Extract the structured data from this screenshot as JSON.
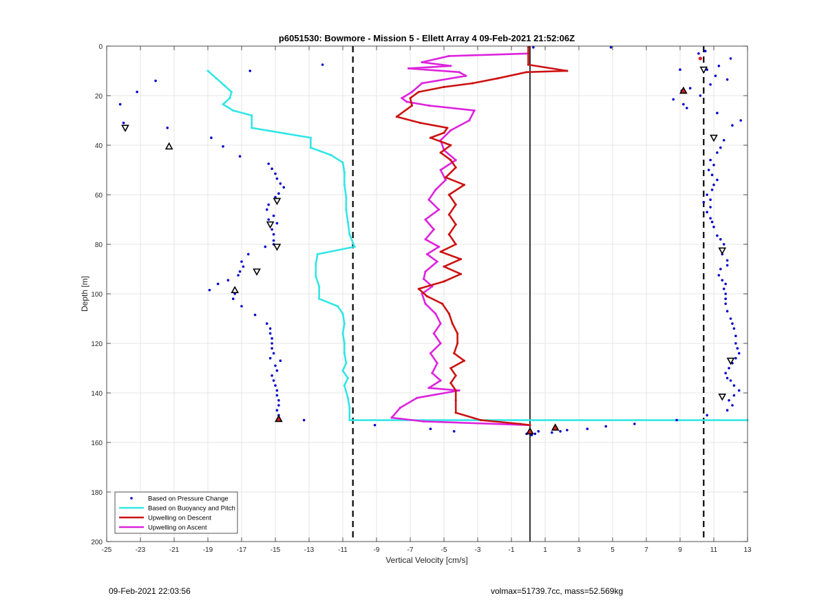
{
  "footer": {
    "timestamp": "09-Feb-2021 22:03:56",
    "volmax_mass": "volmax=51739.7cc, mass=52.569kg"
  },
  "chart_data": {
    "type": "scatter",
    "title": "p6051530: Bowmore - Mission 5 - Ellett Array 4 09-Feb-2021 21:52:06Z",
    "xlabel": "Vertical Velocity [cm/s]",
    "ylabel": "Depth [m]",
    "xlim": [
      -25,
      13
    ],
    "ylim": [
      0,
      200
    ],
    "y_reversed": true,
    "grid": true,
    "xticks": [
      -25,
      -23,
      -21,
      -19,
      -17,
      -15,
      -13,
      -11,
      -9,
      -7,
      -5,
      -3,
      -1,
      1,
      3,
      5,
      7,
      9,
      11,
      13
    ],
    "yticks": [
      0,
      20,
      40,
      60,
      80,
      100,
      120,
      140,
      160,
      180,
      200
    ],
    "legend_position": "bottom-left",
    "colors": {
      "pressure": "#0000cc",
      "buoyancy": "#33e6e6",
      "descent": "#cc1111",
      "ascent": "#dd22dd",
      "reference": "#000000"
    },
    "reference_lines": {
      "dashed_x": [
        -10.4,
        10.4
      ],
      "solid_x": 0.1
    },
    "series": [
      {
        "name": "Based on Pressure Change",
        "style": "points",
        "points": [
          [
            0.3,
            0.5
          ],
          [
            4.9,
            0.5
          ],
          [
            10.5,
            2
          ],
          [
            -12.2,
            7.5
          ],
          [
            10.1,
            3
          ],
          [
            12,
            5
          ],
          [
            11.3,
            8
          ],
          [
            10.6,
            9.5
          ],
          [
            9,
            9.5
          ],
          [
            -16.5,
            10
          ],
          [
            11.1,
            12
          ],
          [
            11.8,
            13.5
          ],
          [
            -22.1,
            14
          ],
          [
            10.8,
            15.5
          ],
          [
            -23.2,
            18.5
          ],
          [
            9.6,
            17
          ],
          [
            9.1,
            18
          ],
          [
            10.2,
            20
          ],
          [
            8.6,
            21.5
          ],
          [
            -24.2,
            23.5
          ],
          [
            9.2,
            23.5
          ],
          [
            9.4,
            25
          ],
          [
            11.2,
            27
          ],
          [
            -24,
            31
          ],
          [
            12.6,
            30
          ],
          [
            12.1,
            32
          ],
          [
            -21.4,
            33
          ],
          [
            -18.8,
            37
          ],
          [
            11.6,
            38
          ],
          [
            11.4,
            41
          ],
          [
            -18.1,
            40.5
          ],
          [
            11.2,
            43
          ],
          [
            -17.1,
            44.5
          ],
          [
            10.8,
            46
          ],
          [
            -15.4,
            47.5
          ],
          [
            11,
            48
          ],
          [
            -15.2,
            49.5
          ],
          [
            10.7,
            50
          ],
          [
            -15,
            51.5
          ],
          [
            10.9,
            52
          ],
          [
            -14.9,
            53.5
          ],
          [
            11.2,
            54
          ],
          [
            -14.7,
            55.5
          ],
          [
            11,
            56
          ],
          [
            -14.5,
            57
          ],
          [
            10.9,
            58
          ],
          [
            -14.8,
            59.5
          ],
          [
            10.6,
            60
          ],
          [
            -15,
            61
          ],
          [
            10.8,
            62
          ],
          [
            -15.4,
            64
          ],
          [
            10.4,
            63
          ],
          [
            -15.5,
            66
          ],
          [
            10.8,
            65
          ],
          [
            -15.1,
            68.5
          ],
          [
            10.6,
            67
          ],
          [
            -15.4,
            70
          ],
          [
            10.8,
            69.5
          ],
          [
            -14.9,
            71.5
          ],
          [
            10.9,
            71
          ],
          [
            -15.2,
            74
          ],
          [
            11,
            73
          ],
          [
            -15.1,
            76
          ],
          [
            11.2,
            76.5
          ],
          [
            -15.1,
            78.5
          ],
          [
            11.4,
            78
          ],
          [
            -15.1,
            80
          ],
          [
            11.6,
            80
          ],
          [
            -15.6,
            81
          ],
          [
            11.4,
            82
          ],
          [
            -16.6,
            84
          ],
          [
            11.5,
            84
          ],
          [
            -17,
            87
          ],
          [
            11.8,
            86.5
          ],
          [
            -16.9,
            89
          ],
          [
            11.8,
            88.5
          ],
          [
            -17.1,
            91
          ],
          [
            11.4,
            90
          ],
          [
            -17.2,
            92.5
          ],
          [
            11.3,
            92.5
          ],
          [
            -17.8,
            94.5
          ],
          [
            11.5,
            94.5
          ],
          [
            -18.4,
            96
          ],
          [
            11.7,
            96
          ],
          [
            -18.9,
            98.5
          ],
          [
            11.6,
            98
          ],
          [
            -17.4,
            100
          ],
          [
            11.7,
            100
          ],
          [
            -17.5,
            102
          ],
          [
            11.7,
            102
          ],
          [
            -17,
            105
          ],
          [
            11.7,
            104
          ],
          [
            -16.2,
            108.5
          ],
          [
            11.8,
            107
          ],
          [
            -15.5,
            112
          ],
          [
            12,
            110
          ],
          [
            -15.3,
            114
          ],
          [
            12.1,
            112
          ],
          [
            -15.3,
            116
          ],
          [
            12.2,
            114
          ],
          [
            -15.2,
            118
          ],
          [
            12.3,
            117
          ],
          [
            -15.2,
            120
          ],
          [
            12.3,
            120
          ],
          [
            -15.2,
            122
          ],
          [
            12.4,
            122
          ],
          [
            -15.1,
            124
          ],
          [
            12.5,
            124
          ],
          [
            -15.3,
            126
          ],
          [
            12.3,
            126
          ],
          [
            -14.7,
            127
          ],
          [
            12.1,
            128
          ],
          [
            -15,
            129
          ],
          [
            11.9,
            130
          ],
          [
            -14.9,
            131
          ],
          [
            11.7,
            132
          ],
          [
            -15.2,
            133
          ],
          [
            11.8,
            134
          ],
          [
            -15.1,
            135
          ],
          [
            12,
            135
          ],
          [
            -15,
            137
          ],
          [
            12.2,
            137
          ],
          [
            -14.9,
            139
          ],
          [
            12.5,
            139
          ],
          [
            -14.9,
            141
          ],
          [
            12.2,
            141
          ],
          [
            -14.8,
            143
          ],
          [
            11.9,
            143
          ],
          [
            -14.8,
            145
          ],
          [
            12.1,
            145
          ],
          [
            -14.9,
            147
          ],
          [
            11.8,
            147
          ],
          [
            -14.8,
            149
          ],
          [
            10.6,
            149
          ],
          [
            -13.3,
            151
          ],
          [
            8.8,
            151
          ],
          [
            -9.1,
            153
          ],
          [
            6.3,
            152.5
          ],
          [
            -5.8,
            154.5
          ],
          [
            4.6,
            153.5
          ],
          [
            -4.4,
            155.5
          ],
          [
            3.5,
            154.5
          ],
          [
            2.3,
            155
          ],
          [
            1.9,
            155.5
          ],
          [
            1.4,
            156
          ],
          [
            0.6,
            155.5
          ],
          [
            0.4,
            156.5
          ],
          [
            0.2,
            157
          ],
          [
            -0.1,
            156.5
          ]
        ]
      },
      {
        "name": "Based on Buoyancy and Pitch",
        "style": "line",
        "points": [
          [
            -19,
            10
          ],
          [
            -18.5,
            13
          ],
          [
            -18,
            16
          ],
          [
            -17.6,
            18.5
          ],
          [
            -17.7,
            21
          ],
          [
            -18.1,
            23.5
          ],
          [
            -17.5,
            26
          ],
          [
            -16.4,
            28
          ],
          [
            -16.4,
            33
          ],
          [
            -12.9,
            37
          ],
          [
            -12.9,
            41
          ],
          [
            -11.7,
            44
          ],
          [
            -11,
            47
          ],
          [
            -10.9,
            51
          ],
          [
            -10.9,
            56
          ],
          [
            -10.8,
            61
          ],
          [
            -10.8,
            66
          ],
          [
            -10.7,
            71
          ],
          [
            -10.6,
            76
          ],
          [
            -10.3,
            81
          ],
          [
            -12.5,
            84
          ],
          [
            -12.6,
            88
          ],
          [
            -12.6,
            93
          ],
          [
            -12.4,
            97
          ],
          [
            -12.4,
            102
          ],
          [
            -11.3,
            105
          ],
          [
            -11,
            108
          ],
          [
            -10.9,
            112
          ],
          [
            -11,
            116
          ],
          [
            -10.9,
            120
          ],
          [
            -10.9,
            124
          ],
          [
            -10.8,
            128
          ],
          [
            -11,
            131
          ],
          [
            -10.7,
            134
          ],
          [
            -10.9,
            137
          ],
          [
            -10.7,
            142
          ],
          [
            -10.6,
            146
          ],
          [
            -10.6,
            151
          ],
          [
            13,
            151
          ]
        ]
      },
      {
        "name": "Upwelling on Descent",
        "style": "line",
        "points": [
          [
            0,
            0.5
          ],
          [
            0,
            7.5
          ],
          [
            2.3,
            10
          ],
          [
            -0.1,
            10.5
          ],
          [
            -1.8,
            13
          ],
          [
            -3.3,
            15
          ],
          [
            -5,
            16.5
          ],
          [
            -6.5,
            18.5
          ],
          [
            -7,
            21
          ],
          [
            -6.9,
            24
          ],
          [
            -7.8,
            28.5
          ],
          [
            -6.4,
            31
          ],
          [
            -4.8,
            33
          ],
          [
            -5,
            35
          ],
          [
            -5.8,
            37
          ],
          [
            -4.6,
            40
          ],
          [
            -5.2,
            43
          ],
          [
            -4.6,
            46
          ],
          [
            -4.3,
            49
          ],
          [
            -4.9,
            53
          ],
          [
            -3.8,
            56
          ],
          [
            -4.7,
            60
          ],
          [
            -4.3,
            64
          ],
          [
            -4.7,
            68
          ],
          [
            -4.3,
            72
          ],
          [
            -4.7,
            76
          ],
          [
            -4.3,
            80
          ],
          [
            -5.2,
            83
          ],
          [
            -4,
            86
          ],
          [
            -5,
            89
          ],
          [
            -4,
            92
          ],
          [
            -5,
            95
          ],
          [
            -6.5,
            98
          ],
          [
            -6,
            101
          ],
          [
            -5.1,
            104
          ],
          [
            -4.7,
            108
          ],
          [
            -4.5,
            112
          ],
          [
            -4.2,
            116
          ],
          [
            -4.2,
            120
          ],
          [
            -4.4,
            124
          ],
          [
            -3.8,
            127
          ],
          [
            -4.6,
            130
          ],
          [
            -4.3,
            133
          ],
          [
            -4.6,
            136
          ],
          [
            -4.3,
            139
          ],
          [
            -4.3,
            143
          ],
          [
            -4.3,
            148
          ],
          [
            -2.8,
            151
          ],
          [
            -0.5,
            152.5
          ],
          [
            0.1,
            153
          ]
        ]
      },
      {
        "name": "Upwelling on Ascent",
        "style": "line",
        "points": [
          [
            0,
            3
          ],
          [
            -4.7,
            4
          ],
          [
            -6.3,
            6.5
          ],
          [
            -4.6,
            8
          ],
          [
            -7.1,
            9
          ],
          [
            -4.1,
            10.5
          ],
          [
            -3.7,
            12
          ],
          [
            -6.3,
            15
          ],
          [
            -6.9,
            18.5
          ],
          [
            -7.5,
            21
          ],
          [
            -7.2,
            22.5
          ],
          [
            -5.9,
            24
          ],
          [
            -3.2,
            26
          ],
          [
            -3.5,
            30
          ],
          [
            -4.6,
            34
          ],
          [
            -5.2,
            38
          ],
          [
            -5,
            42
          ],
          [
            -4.3,
            46
          ],
          [
            -5.2,
            50
          ],
          [
            -4.9,
            54
          ],
          [
            -5.5,
            58
          ],
          [
            -5.9,
            62
          ],
          [
            -5.3,
            66
          ],
          [
            -6.1,
            70
          ],
          [
            -5.6,
            74
          ],
          [
            -6.1,
            78
          ],
          [
            -5.3,
            81
          ],
          [
            -6,
            84
          ],
          [
            -5.4,
            87
          ],
          [
            -6.1,
            91
          ],
          [
            -6.2,
            94
          ],
          [
            -5.7,
            97
          ],
          [
            -6.3,
            100
          ],
          [
            -6.1,
            104
          ],
          [
            -5.5,
            108
          ],
          [
            -5.2,
            112
          ],
          [
            -5.6,
            116
          ],
          [
            -5.2,
            120
          ],
          [
            -5.8,
            124
          ],
          [
            -5.4,
            128
          ],
          [
            -5.7,
            132
          ],
          [
            -5.2,
            135
          ],
          [
            -5.9,
            138
          ],
          [
            -4.1,
            139
          ],
          [
            -6.6,
            142
          ],
          [
            -7.6,
            146
          ],
          [
            -8.1,
            150
          ],
          [
            -6.2,
            151.5
          ],
          [
            0.1,
            153
          ]
        ]
      }
    ],
    "markers": {
      "down_triangles": [
        [
          -23.9,
          33
        ],
        [
          -14.9,
          62.5
        ],
        [
          -15.3,
          72
        ],
        [
          -14.9,
          81
        ],
        [
          -16.1,
          91
        ],
        [
          10.4,
          9.5
        ],
        [
          11,
          37
        ],
        [
          11.5,
          82.5
        ],
        [
          12,
          127
        ],
        [
          11.5,
          141.5
        ]
      ],
      "up_triangles": [
        [
          -21.3,
          40.5
        ],
        [
          -17.4,
          98.5
        ]
      ],
      "red_filled_up_triangles": [
        [
          9.2,
          18
        ],
        [
          -14.8,
          150.5
        ],
        [
          1.6,
          154
        ],
        [
          0.1,
          155.5
        ]
      ],
      "red_dots": [
        [
          10.2,
          5
        ]
      ]
    },
    "legend": [
      {
        "label": "Based on Pressure Change",
        "kind": "point",
        "color_key": "pressure"
      },
      {
        "label": "Based on Buoyancy and Pitch",
        "kind": "line",
        "color_key": "buoyancy"
      },
      {
        "label": "Upwelling on Descent",
        "kind": "line",
        "color_key": "descent"
      },
      {
        "label": "Upwelling on Ascent",
        "kind": "line",
        "color_key": "ascent"
      }
    ]
  }
}
